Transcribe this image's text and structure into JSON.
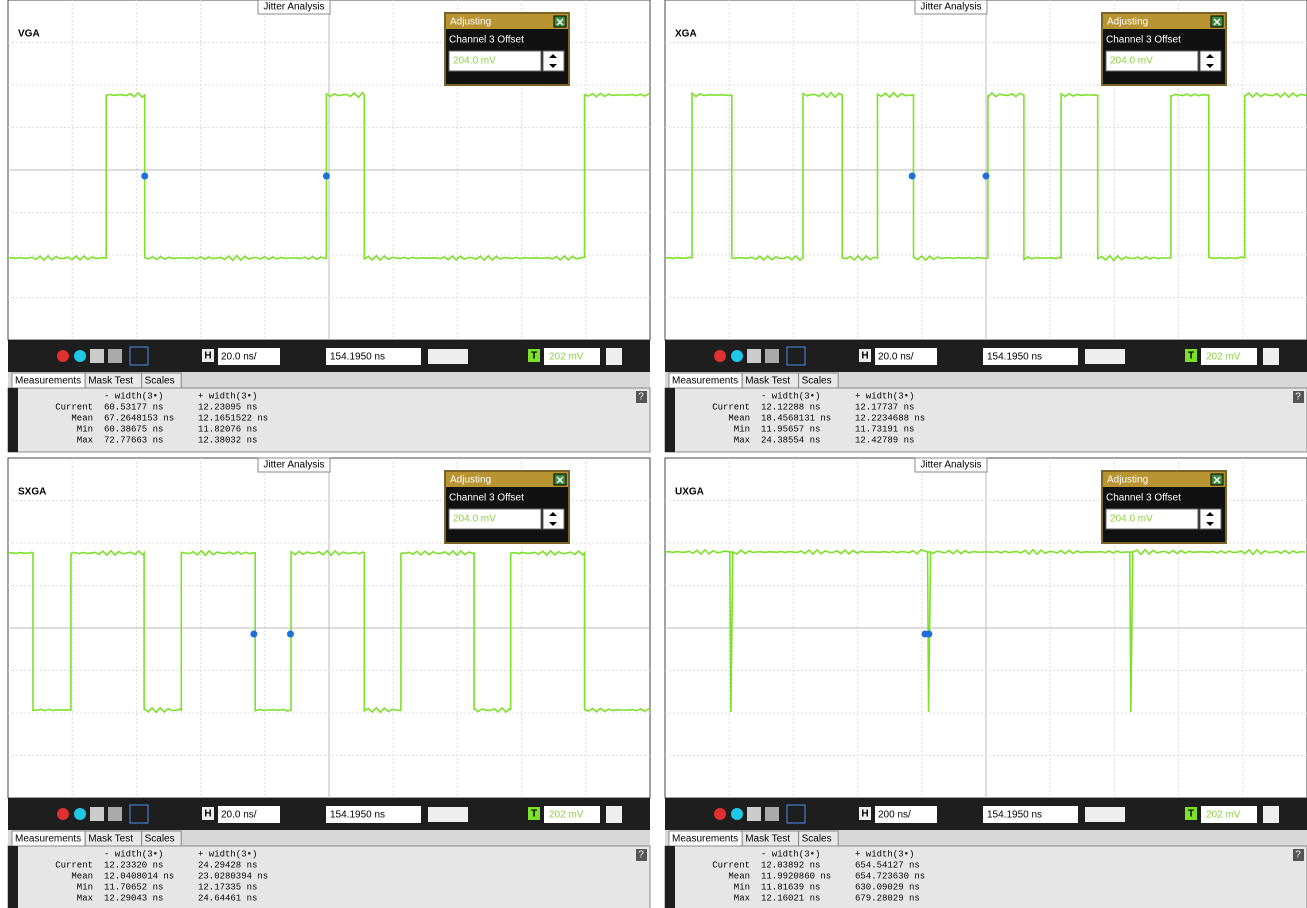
{
  "panels": [
    {
      "label": "VGA",
      "tab": "Jitter Analysis",
      "adjust": {
        "title": "Adjusting",
        "param": "Channel 3 Offset",
        "value": "204.0 mV"
      },
      "toolbar": {
        "h": "H",
        "timebase": "20.0 ns/",
        "position": "154.1950 ns",
        "t": "T",
        "trigger": "202 mV"
      },
      "tabs": [
        "Measurements",
        "Mask Test",
        "Scales"
      ],
      "help": "?",
      "measurements": {
        "headers": [
          "- width(3•)",
          "+ width(3•)"
        ],
        "rows": [
          [
            "Current",
            "60.53177 ns",
            "12.23095 ns"
          ],
          [
            "Mean",
            "67.2648153 ns",
            "12.1651522 ns"
          ],
          [
            "Min",
            "60.38675 ns",
            "11.82076 ns"
          ],
          [
            "Max",
            "72.77663 ns",
            "12.38032 ns"
          ]
        ]
      }
    },
    {
      "label": "XGA",
      "tab": "Jitter Analysis",
      "adjust": {
        "title": "Adjusting",
        "param": "Channel 3 Offset",
        "value": "204.0 mV"
      },
      "toolbar": {
        "h": "H",
        "timebase": "20.0 ns/",
        "position": "154.1950 ns",
        "t": "T",
        "trigger": "202 mV"
      },
      "tabs": [
        "Measurements",
        "Mask Test",
        "Scales"
      ],
      "help": "?",
      "measurements": {
        "headers": [
          "- width(3•)",
          "+ width(3•)"
        ],
        "rows": [
          [
            "Current",
            "12.12288 ns",
            "12.17737 ns"
          ],
          [
            "Mean",
            "18.4568131 ns",
            "12.2234688 ns"
          ],
          [
            "Min",
            "11.95657 ns",
            "11.73191 ns"
          ],
          [
            "Max",
            "24.38554 ns",
            "12.42789 ns"
          ]
        ]
      }
    },
    {
      "label": "SXGA",
      "tab": "Jitter Analysis",
      "adjust": {
        "title": "Adjusting",
        "param": "Channel 3 Offset",
        "value": "204.0 mV"
      },
      "toolbar": {
        "h": "H",
        "timebase": "20.0 ns/",
        "position": "154.1950 ns",
        "t": "T",
        "trigger": "202 mV"
      },
      "tabs": [
        "Measurements",
        "Mask Test",
        "Scales"
      ],
      "help": "?",
      "measurements": {
        "headers": [
          "- width(3•)",
          "+ width(3•)"
        ],
        "rows": [
          [
            "Current",
            "12.23320 ns",
            "24.29428 ns"
          ],
          [
            "Mean",
            "12.0408014 ns",
            "23.0280394 ns"
          ],
          [
            "Min",
            "11.70652 ns",
            "12.17335 ns"
          ],
          [
            "Max",
            "12.29043 ns",
            "24.64461 ns"
          ]
        ]
      }
    },
    {
      "label": "UXGA",
      "tab": "Jitter Analysis",
      "adjust": {
        "title": "Adjusting",
        "param": "Channel 3 Offset",
        "value": "204.0 mV"
      },
      "toolbar": {
        "h": "H",
        "timebase": "200 ns/",
        "position": "154.1950 ns",
        "t": "T",
        "trigger": "202 mV"
      },
      "tabs": [
        "Measurements",
        "Mask Test",
        "Scales"
      ],
      "help": "?",
      "measurements": {
        "headers": [
          "- width(3•)",
          "+ width(3•)"
        ],
        "rows": [
          [
            "Current",
            "12.03892 ns",
            "654.54127 ns"
          ],
          [
            "Mean",
            "11.9920860 ns",
            "654.723630 ns"
          ],
          [
            "Min",
            "11.81639 ns",
            "630.09029 ns"
          ],
          [
            "Max",
            "12.16021 ns",
            "679.28029 ns"
          ]
        ]
      }
    }
  ]
}
